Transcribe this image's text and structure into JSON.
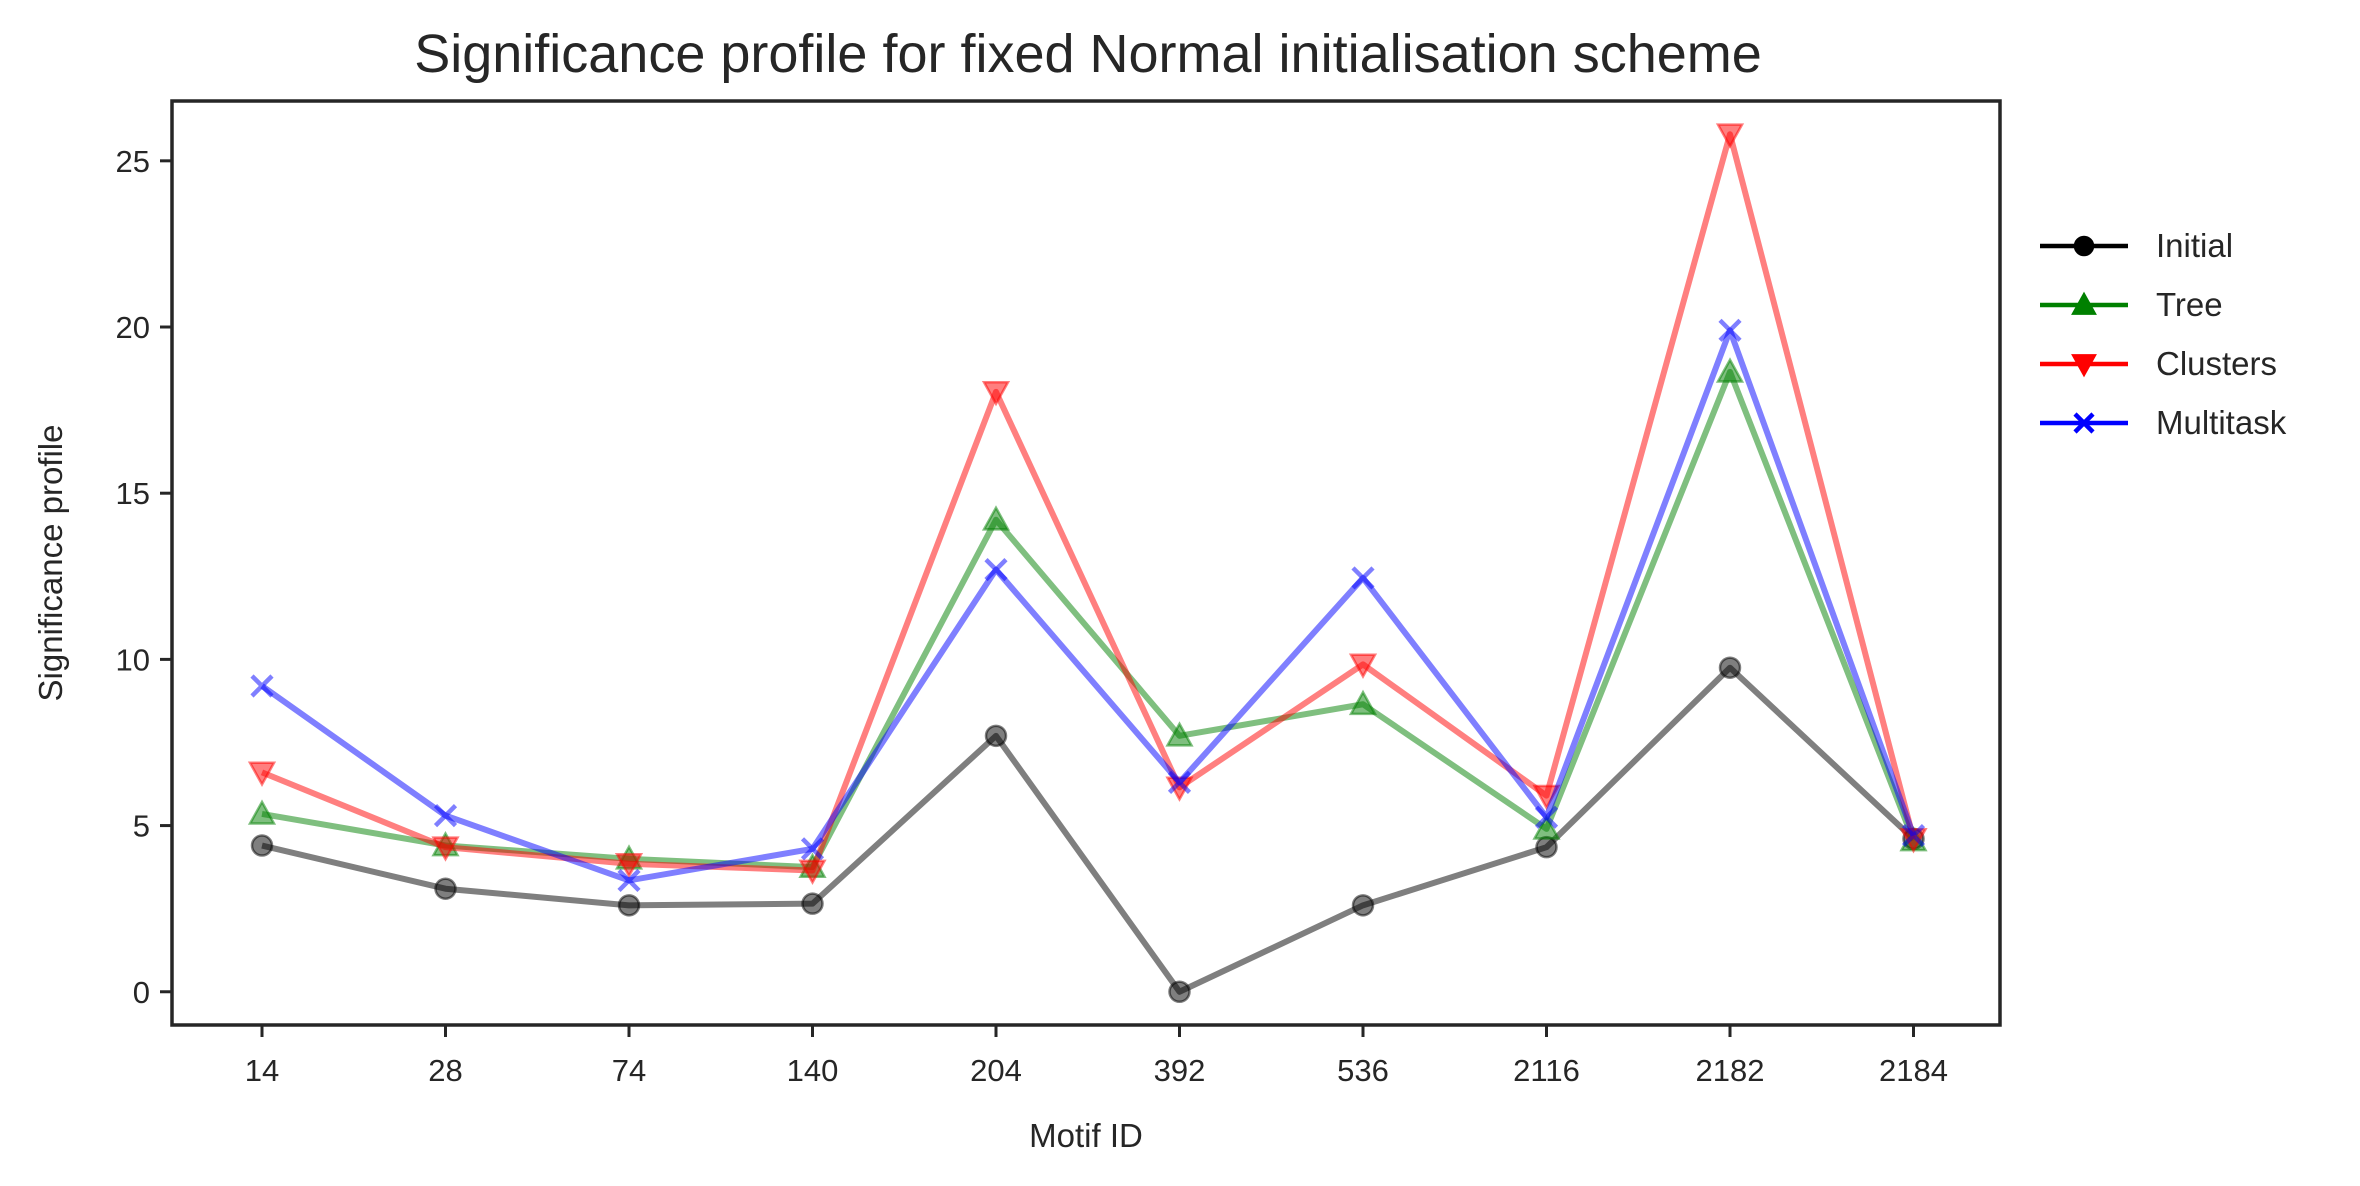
{
  "chart_data": {
    "type": "line",
    "title": "Significance profile for fixed Normal initialisation scheme",
    "xlabel": "Motif ID",
    "ylabel": "Significance profile",
    "categories": [
      "14",
      "28",
      "74",
      "140",
      "204",
      "392",
      "536",
      "2116",
      "2182",
      "2184"
    ],
    "ylim": [
      -1,
      26.8
    ],
    "yticks": [
      0,
      5,
      10,
      15,
      20,
      25
    ],
    "grid": false,
    "legend_position": "outside right",
    "series": [
      {
        "name": "Initial",
        "color": "#000000",
        "marker": "circle",
        "values": [
          4.4,
          3.1,
          2.6,
          2.65,
          7.7,
          0.0,
          2.6,
          4.35,
          9.75,
          4.6
        ]
      },
      {
        "name": "Tree",
        "color": "#008000",
        "marker": "triangle-up",
        "values": [
          5.35,
          4.4,
          4.0,
          3.75,
          14.2,
          7.7,
          8.65,
          4.9,
          18.65,
          4.55
        ]
      },
      {
        "name": "Clusters",
        "color": "#ff0000",
        "marker": "triangle-down",
        "values": [
          6.6,
          4.35,
          3.85,
          3.65,
          18.05,
          6.15,
          9.85,
          5.9,
          25.8,
          4.6
        ]
      },
      {
        "name": "Multitask",
        "color": "#0000ff",
        "marker": "x",
        "values": [
          9.2,
          5.3,
          3.35,
          4.3,
          12.7,
          6.3,
          12.45,
          5.25,
          19.9,
          4.7
        ]
      }
    ]
  }
}
